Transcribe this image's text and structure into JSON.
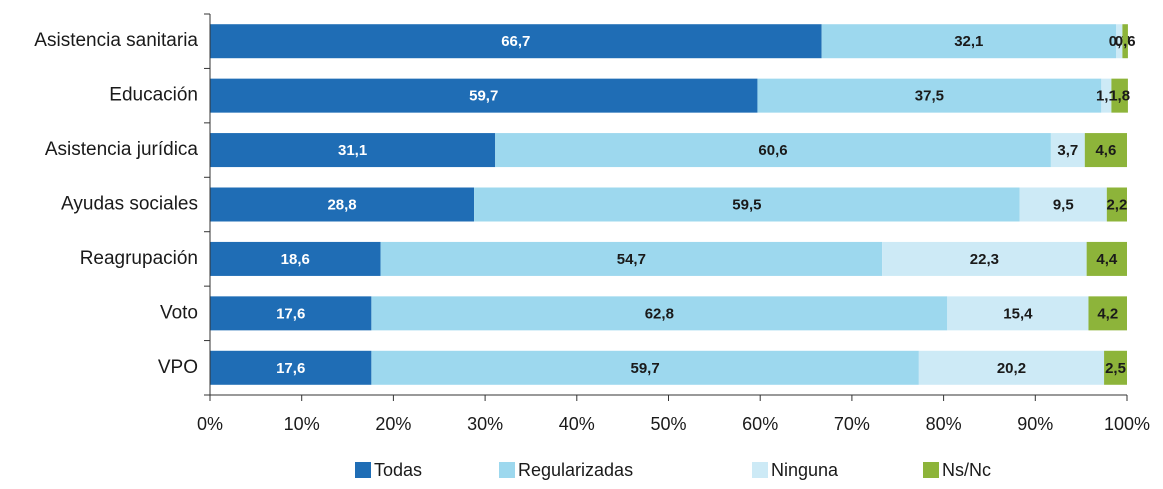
{
  "chart_data": {
    "type": "stacked_barh",
    "categories": [
      "Asistencia sanitaria",
      "Educación",
      "Asistencia jurídica",
      "Ayudas sociales",
      "Reagrupación",
      "Voto",
      "VPO"
    ],
    "series": [
      {
        "name": "Todas",
        "color": "#1f6db5",
        "values": [
          66.7,
          59.7,
          31.1,
          28.8,
          18.6,
          17.6,
          17.6
        ],
        "value_labels": [
          "66,7",
          "59,7",
          "31,1",
          "28,8",
          "18,6",
          "17,6",
          "17,6"
        ]
      },
      {
        "name": "Regularizadas",
        "color": "#9dd8ee",
        "values": [
          32.1,
          37.5,
          60.6,
          59.5,
          54.7,
          62.8,
          59.7
        ],
        "value_labels": [
          "32,1",
          "37,5",
          "60,6",
          "59,5",
          "54,7",
          "62,8",
          "59,7"
        ]
      },
      {
        "name": "Ninguna",
        "color": "#cdeaf6",
        "values": [
          0.7,
          1.1,
          3.7,
          9.5,
          22.3,
          15.4,
          20.2
        ],
        "value_labels": [
          "0,7",
          "1,1",
          "3,7",
          "9,5",
          "22,3",
          "15,4",
          "20,2"
        ]
      },
      {
        "name": "Ns/Nc",
        "color": "#8db43a",
        "values": [
          0.6,
          1.8,
          4.6,
          2.2,
          4.4,
          4.2,
          2.5
        ],
        "value_labels": [
          "0,6",
          "1,8",
          "4,6",
          "2,2",
          "4,4",
          "4,2",
          "2,5"
        ]
      }
    ],
    "xlim": [
      0,
      100
    ],
    "xticks": [
      {
        "value": 0,
        "label": "0%"
      },
      {
        "value": 10,
        "label": "10%"
      },
      {
        "value": 20,
        "label": "20%"
      },
      {
        "value": 30,
        "label": "30%"
      },
      {
        "value": 40,
        "label": "40%"
      },
      {
        "value": 50,
        "label": "50%"
      },
      {
        "value": 60,
        "label": "60%"
      },
      {
        "value": 70,
        "label": "70%"
      },
      {
        "value": 80,
        "label": "80%"
      },
      {
        "value": 90,
        "label": "90%"
      },
      {
        "value": 100,
        "label": "100%"
      }
    ],
    "legend": "bottom"
  }
}
